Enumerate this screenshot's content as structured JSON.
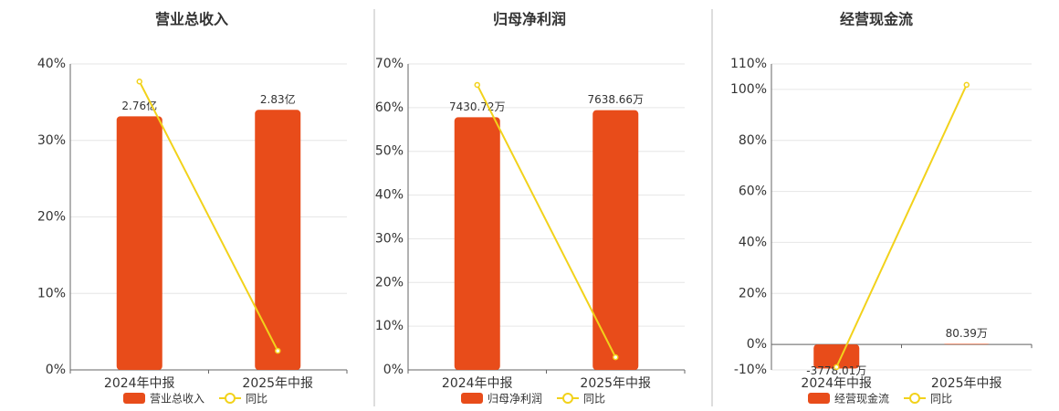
{
  "chart_data": [
    {
      "type": "bar-line",
      "title": "营业总收入",
      "categories": [
        "2024年中报",
        "2025年中报"
      ],
      "series": [
        {
          "name": "营业总收入",
          "type": "bar",
          "color": "#e84c1a",
          "axis": "y2",
          "values": [
            2.76,
            2.83
          ],
          "value_labels": [
            "2.76亿",
            "2.83亿"
          ]
        },
        {
          "name": "同比",
          "type": "line",
          "color": "#f2d21b",
          "values": [
            37.7,
            2.5
          ]
        }
      ],
      "ylim": [
        0,
        40
      ],
      "yticks": [
        {
          "value": 0,
          "label": "0%"
        },
        {
          "value": 10,
          "label": "10%"
        },
        {
          "value": 20,
          "label": "20%"
        },
        {
          "value": 30,
          "label": "30%"
        },
        {
          "value": 40,
          "label": "40%"
        }
      ],
      "y2lim": [
        0,
        3.33
      ],
      "grid": true
    },
    {
      "type": "bar-line",
      "title": "归母净利润",
      "categories": [
        "2024年中报",
        "2025年中报"
      ],
      "series": [
        {
          "name": "归母净利润",
          "type": "bar",
          "color": "#e84c1a",
          "axis": "y2",
          "values": [
            7430.72,
            7638.66
          ],
          "value_labels": [
            "7430.72万",
            "7638.66万"
          ]
        },
        {
          "name": "同比",
          "type": "line",
          "color": "#f2d21b",
          "values": [
            65.2,
            2.9
          ]
        }
      ],
      "ylim": [
        0,
        70
      ],
      "yticks": [
        {
          "value": 0,
          "label": "0%"
        },
        {
          "value": 10,
          "label": "10%"
        },
        {
          "value": 20,
          "label": "20%"
        },
        {
          "value": 30,
          "label": "30%"
        },
        {
          "value": 40,
          "label": "40%"
        },
        {
          "value": 50,
          "label": "50%"
        },
        {
          "value": 60,
          "label": "60%"
        },
        {
          "value": 70,
          "label": "70%"
        }
      ],
      "y2lim": [
        0,
        9000
      ],
      "grid": true
    },
    {
      "type": "bar-line",
      "title": "经营现金流",
      "categories": [
        "2024年中报",
        "2025年中报"
      ],
      "series": [
        {
          "name": "经营现金流",
          "type": "bar",
          "color": "#e84c1a",
          "axis": "y2",
          "values": [
            -3778.01,
            80.39
          ],
          "value_labels": [
            "-3778.01万",
            "80.39万"
          ]
        },
        {
          "name": "同比",
          "type": "line",
          "color": "#f2d21b",
          "values": [
            -8.9,
            101.8
          ]
        }
      ],
      "ylim": [
        -10,
        110
      ],
      "yticks": [
        {
          "value": -10,
          "label": "-10%"
        },
        {
          "value": 0,
          "label": "0%"
        },
        {
          "value": 20,
          "label": "20%"
        },
        {
          "value": 40,
          "label": "40%"
        },
        {
          "value": 60,
          "label": "60%"
        },
        {
          "value": 80,
          "label": "80%"
        },
        {
          "value": 100,
          "label": "100%"
        },
        {
          "value": 110,
          "label": "110%"
        }
      ],
      "y2lim": [
        -4000,
        44000
      ],
      "grid": true
    }
  ]
}
